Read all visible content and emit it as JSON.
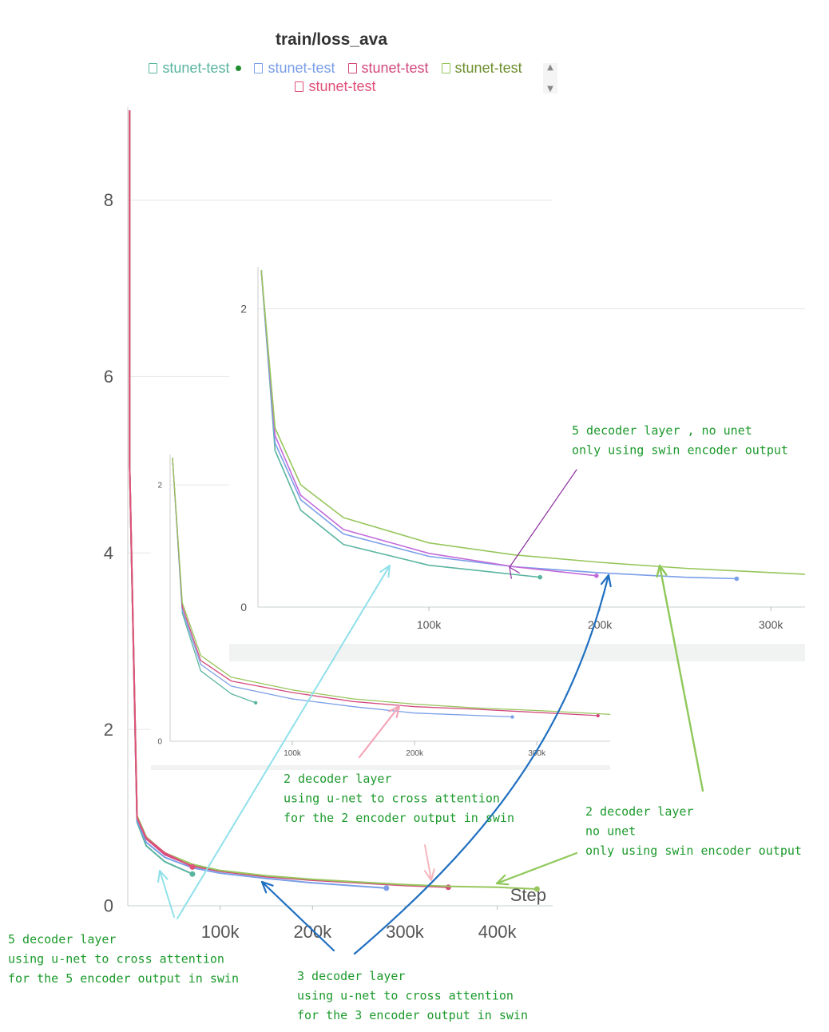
{
  "chart_data": [
    {
      "type": "line",
      "title": "train/loss_ava",
      "xlabel": "Step",
      "ylabel": "",
      "xlim": [
        0,
        460000
      ],
      "ylim": [
        0,
        9
      ],
      "x_ticks": [
        "100k",
        "200k",
        "300k",
        "400k"
      ],
      "y_ticks": [
        "0",
        "2",
        "4",
        "6",
        "8"
      ],
      "legend": {
        "placement": "top",
        "entries": [
          "stunet-test",
          "stunet-test",
          "stunet-test",
          "stunet-test",
          "stunet-test"
        ]
      },
      "series": [
        {
          "name": "stunet-test",
          "color": "#5ab5a0",
          "x": [
            2000,
            10000,
            20000,
            40000,
            70000
          ],
          "y": [
            5.0,
            0.95,
            0.68,
            0.5,
            0.36
          ]
        },
        {
          "name": "stunet-test",
          "color": "#7a9fe8",
          "x": [
            2000,
            10000,
            20000,
            40000,
            70000,
            100000,
            150000,
            200000,
            280000
          ],
          "y": [
            5.0,
            0.97,
            0.72,
            0.55,
            0.43,
            0.37,
            0.31,
            0.26,
            0.2
          ]
        },
        {
          "name": "stunet-test",
          "color": "#d2497e",
          "x": [
            2000,
            10000,
            20000,
            40000,
            70000,
            100000,
            150000,
            200000,
            250000,
            300000,
            347000
          ],
          "y": [
            5.0,
            1.0,
            0.76,
            0.58,
            0.45,
            0.39,
            0.33,
            0.29,
            0.26,
            0.23,
            0.21
          ]
        },
        {
          "name": "stunet-test",
          "color": "#97c65c",
          "x": [
            2000,
            10000,
            20000,
            40000,
            70000,
            100000,
            150000,
            200000,
            250000,
            300000,
            350000,
            400000,
            443000
          ],
          "y": [
            5.0,
            1.02,
            0.78,
            0.6,
            0.47,
            0.4,
            0.34,
            0.3,
            0.27,
            0.24,
            0.22,
            0.21,
            0.19
          ]
        },
        {
          "name": "stunet-test",
          "color": "#e0507a",
          "x": [
            2000,
            10000,
            20000,
            40000,
            70000
          ],
          "y": [
            5.0,
            1.0,
            0.77,
            0.6,
            0.44
          ]
        }
      ]
    },
    {
      "type": "line",
      "title": "",
      "xlim": [
        0,
        320000
      ],
      "ylim": [
        0,
        2.25
      ],
      "x_ticks": [
        "100k",
        "200k",
        "300k"
      ],
      "y_ticks": [
        "0",
        "2"
      ],
      "series": [
        {
          "color": "#5ab5a0",
          "x": [
            2000,
            10000,
            25000,
            50000,
            100000,
            165000
          ],
          "y": [
            2.25,
            1.05,
            0.65,
            0.42,
            0.28,
            0.2
          ]
        },
        {
          "color": "#7a9fe8",
          "x": [
            2000,
            10000,
            25000,
            50000,
            100000,
            150000,
            200000,
            250000,
            280000
          ],
          "y": [
            2.25,
            1.1,
            0.72,
            0.49,
            0.34,
            0.27,
            0.23,
            0.2,
            0.19
          ]
        },
        {
          "color": "#c36bd9",
          "x": [
            2000,
            10000,
            25000,
            50000,
            100000,
            150000,
            198000
          ],
          "y": [
            2.25,
            1.15,
            0.75,
            0.52,
            0.36,
            0.27,
            0.21
          ]
        },
        {
          "color": "#97c65c",
          "x": [
            2000,
            10000,
            25000,
            50000,
            100000,
            150000,
            200000,
            250000,
            320000
          ],
          "y": [
            2.25,
            1.2,
            0.82,
            0.6,
            0.43,
            0.35,
            0.3,
            0.26,
            0.22
          ]
        }
      ]
    },
    {
      "type": "line",
      "title": "",
      "xlim": [
        0,
        360000
      ],
      "ylim": [
        0,
        2.2
      ],
      "x_ticks": [
        "100k",
        "200k",
        "300k"
      ],
      "y_ticks": [
        "0",
        "2"
      ],
      "series": [
        {
          "color": "#5ab5a0",
          "x": [
            2000,
            10000,
            25000,
            50000,
            70000
          ],
          "y": [
            2.2,
            1.0,
            0.55,
            0.37,
            0.3
          ]
        },
        {
          "color": "#7a9fe8",
          "x": [
            2000,
            10000,
            25000,
            50000,
            100000,
            150000,
            200000,
            280000
          ],
          "y": [
            2.2,
            1.02,
            0.6,
            0.43,
            0.33,
            0.27,
            0.22,
            0.19
          ]
        },
        {
          "color": "#d2497e",
          "x": [
            2000,
            10000,
            25000,
            50000,
            100000,
            150000,
            200000,
            250000,
            350000
          ],
          "y": [
            2.2,
            1.05,
            0.63,
            0.47,
            0.38,
            0.31,
            0.27,
            0.25,
            0.2
          ]
        },
        {
          "color": "#97c65c",
          "x": [
            2000,
            10000,
            25000,
            50000,
            100000,
            150000,
            200000,
            250000,
            300000,
            360000
          ],
          "y": [
            2.2,
            1.08,
            0.67,
            0.5,
            0.4,
            0.33,
            0.29,
            0.26,
            0.24,
            0.21
          ]
        }
      ]
    }
  ],
  "annotations": [
    {
      "lines": [
        "5 decoder layer , no unet",
        "only using swin encoder output"
      ],
      "color": "#1c9a2c"
    },
    {
      "lines": [
        "2 decoder layer",
        "using u-net to cross attention",
        "for the 2 encoder output in swin"
      ],
      "color": "#1c9a2c"
    },
    {
      "lines": [
        "2 decoder layer",
        "no unet",
        "only using swin encoder output"
      ],
      "color": "#1c9a2c"
    },
    {
      "lines": [
        "5 decoder layer",
        "using u-net to cross attention",
        "for the 5 encoder output in swin"
      ],
      "color": "#1c9a2c"
    },
    {
      "lines": [
        "3 decoder layer",
        "using u-net to cross attention",
        "for the 3 encoder output in swin"
      ],
      "color": "#1c9a2c"
    }
  ],
  "arrow_colors": [
    "#8f2fa0",
    "#f4a6b8",
    "#8fc85a",
    "#8fe0ea",
    "#1f6fc0",
    "#f6b6bd"
  ]
}
